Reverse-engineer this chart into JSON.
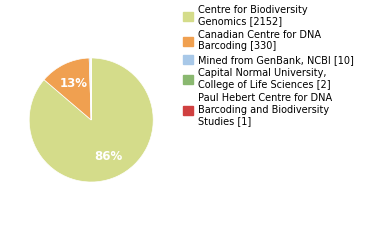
{
  "labels": [
    "Centre for Biodiversity\nGenomics [2152]",
    "Canadian Centre for DNA\nBarcoding [330]",
    "Mined from GenBank, NCBI [10]",
    "Capital Normal University,\nCollege of Life Sciences [2]",
    "Paul Hebert Centre for DNA\nBarcoding and Biodiversity\nStudies [1]"
  ],
  "values": [
    2152,
    330,
    10,
    2,
    1
  ],
  "colors": [
    "#d4dc8a",
    "#f0a050",
    "#a8c8e8",
    "#8ab870",
    "#d04040"
  ],
  "background_color": "#ffffff",
  "legend_fontsize": 7.0,
  "autopct_fontsize": 8.5
}
